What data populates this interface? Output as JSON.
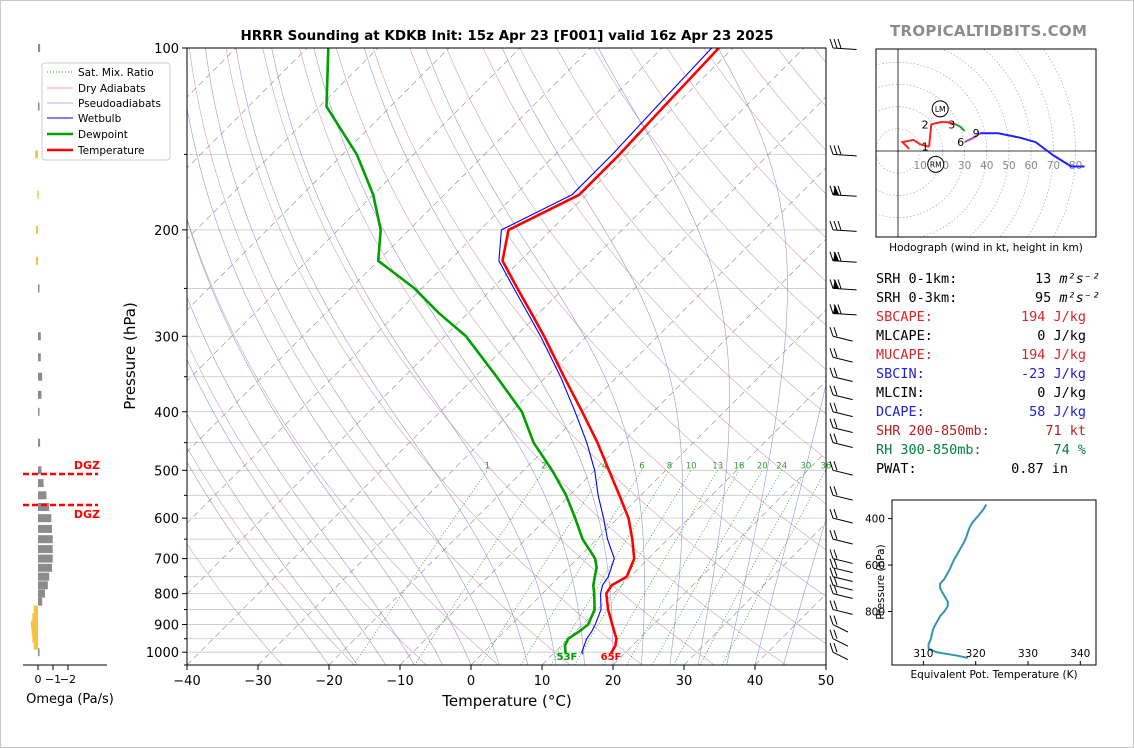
{
  "title": "HRRR Sounding at KDKB Init: 15z Apr 23 [F001] valid 16z Apr 23 2025",
  "brand": "TROPICALTIDBITS.COM",
  "skewt": {
    "xlabel": "Temperature (°C)",
    "ylabel": "Pressure (hPa)",
    "x_ticks": [
      "−40",
      "−30",
      "−20",
      "−10",
      "0",
      "10",
      "20",
      "30",
      "40",
      "50"
    ],
    "y_ticks": [
      "100",
      "200",
      "300",
      "400",
      "500",
      "600",
      "700",
      "800",
      "900",
      "1000"
    ],
    "legend": [
      "Sat. Mix. Ratio",
      "Dry Adiabats",
      "Pseudoadiabats",
      "Wetbulb",
      "Dewpoint",
      "Temperature"
    ],
    "mixing_ratio_labels": [
      "1",
      "2",
      "4",
      "6",
      "8",
      "10",
      "13",
      "16",
      "20",
      "24",
      "30",
      "36"
    ],
    "surface_dewpoint_label": "53F",
    "surface_temp_label": "65F",
    "colors": {
      "temperature": "#ff0000",
      "dewpoint": "#00a000",
      "wetbulb": "#0000ff",
      "mixing": "#2e9e2e",
      "dry": "#c8879a",
      "moist": "#7d7dd2"
    }
  },
  "omega": {
    "xlabel": "Omega (Pa/s)",
    "ticks": [
      "0",
      "−1",
      "−2"
    ],
    "dgz_label": "DGZ"
  },
  "hodograph": {
    "caption": "Hodograph (wind in kt, height in km)",
    "ring_labels": [
      "10",
      "20",
      "30",
      "40",
      "50",
      "60",
      "70",
      "80"
    ],
    "height_labels": [
      "1",
      "2",
      "3",
      "6",
      "9"
    ],
    "lm_label": "LM",
    "rm_label": "RM"
  },
  "params": [
    {
      "label": "SRH 0-1km:",
      "value": "13",
      "unit": "m²s⁻²",
      "color": "#000000"
    },
    {
      "label": "SRH 0-3km:",
      "value": "95",
      "unit": "m²s⁻²",
      "color": "#000000"
    },
    {
      "label": "SBCAPE:",
      "value": "194 J/kg",
      "color": "#d62728"
    },
    {
      "label": "MLCAPE:",
      "value": "0 J/kg",
      "color": "#000000"
    },
    {
      "label": "MUCAPE:",
      "value": "194 J/kg",
      "color": "#d62728"
    },
    {
      "label": "SBCIN:",
      "value": "-23 J/kg",
      "color": "#2020d0"
    },
    {
      "label": "MLCIN:",
      "value": "0 J/kg",
      "color": "#000000"
    },
    {
      "label": "DCAPE:",
      "value": "58 J/kg",
      "color": "#2020d0"
    },
    {
      "label": "SHR 200-850mb:",
      "value": "71 kt",
      "color": "#b22222"
    },
    {
      "label": "RH 300-850mb:",
      "value": "74 %",
      "color": "#008040"
    },
    {
      "label": "PWAT:",
      "value": "0.87 in",
      "color": "#000000"
    }
  ],
  "theta_e": {
    "xlabel": "Equivalent Pot. Temperature (K)",
    "ylabel": "Pressure (hPa)",
    "x_ticks": [
      "310",
      "320",
      "330",
      "340"
    ],
    "y_ticks": [
      "400",
      "600",
      "800"
    ]
  },
  "chart_data": [
    {
      "type": "line",
      "name": "skew-t",
      "xlim": [
        -40,
        50
      ],
      "ylim": [
        1050,
        100
      ],
      "log_y": true,
      "skew_deg": 45,
      "series": [
        {
          "name": "Temperature",
          "p": [
            1007,
            1000,
            975,
            950,
            925,
            900,
            850,
            800,
            775,
            750,
            700,
            650,
            600,
            550,
            500,
            450,
            400,
            350,
            300,
            275,
            250,
            225,
            200,
            175,
            150,
            125,
            100
          ],
          "t": [
            18.3,
            18.0,
            17.6,
            16.8,
            15.5,
            14.2,
            11.5,
            9.0,
            8.6,
            9.5,
            8.0,
            5.0,
            1.5,
            -3.0,
            -8.0,
            -13.5,
            -20.0,
            -27.5,
            -36.0,
            -41.0,
            -46.5,
            -52.5,
            -56.0,
            -51.0,
            -51.0,
            -51.5,
            -52.0
          ]
        },
        {
          "name": "Dewpoint",
          "p": [
            1007,
            1000,
            975,
            950,
            925,
            900,
            850,
            800,
            775,
            750,
            725,
            700,
            650,
            600,
            550,
            500,
            450,
            400,
            350,
            300,
            275,
            250,
            225,
            200,
            175,
            150,
            125,
            100
          ],
          "t": [
            11.8,
            11.5,
            10.5,
            10.0,
            10.5,
            10.8,
            9.6,
            7.3,
            6.0,
            5.0,
            4.0,
            2.5,
            -2.0,
            -6.0,
            -10.5,
            -16.0,
            -22.5,
            -28.5,
            -37.0,
            -47.0,
            -54.0,
            -61.0,
            -70.0,
            -74.0,
            -80.0,
            -88.0,
            -99.0,
            -107.0
          ]
        },
        {
          "name": "Wetbulb",
          "p": [
            1007,
            1000,
            975,
            950,
            925,
            900,
            850,
            800,
            775,
            750,
            700,
            650,
            600,
            550,
            500,
            450,
            400,
            350,
            300,
            275,
            250,
            225,
            200,
            175,
            150,
            125,
            100
          ],
          "t": [
            14.2,
            13.8,
            13.2,
            12.6,
            12.3,
            11.8,
            10.5,
            8.2,
            7.3,
            6.9,
            5.2,
            1.5,
            -2.0,
            -6.0,
            -10.0,
            -15.0,
            -21.0,
            -28.0,
            -36.5,
            -41.5,
            -47.0,
            -53.0,
            -57.0,
            -52.0,
            -52.0,
            -52.5,
            -53.0
          ]
        }
      ]
    },
    {
      "type": "bar",
      "name": "omega",
      "xlim": [
        0.5,
        -2.5
      ],
      "p": [
        1000,
        975,
        950,
        925,
        900,
        875,
        850,
        825,
        800,
        775,
        750,
        725,
        700,
        675,
        650,
        625,
        600,
        575,
        550,
        525,
        500,
        450,
        400,
        375,
        350,
        325,
        300,
        250,
        225,
        200,
        175,
        150,
        125,
        100
      ],
      "omega": [
        -0.1,
        0.3,
        0.4,
        0.45,
        0.5,
        0.4,
        0.3,
        -0.3,
        -0.5,
        -0.7,
        -0.8,
        -1.0,
        -1.05,
        -1.05,
        -1.05,
        -1.0,
        -0.95,
        -0.8,
        -0.6,
        -0.4,
        -0.25,
        -0.15,
        -0.1,
        -0.25,
        -0.3,
        -0.2,
        -0.2,
        -0.05,
        0.15,
        0.15,
        0.05,
        0.2,
        -0.1,
        -0.15
      ],
      "dgz_p": [
        570,
        505
      ]
    },
    {
      "type": "line",
      "name": "hodograph",
      "xlim": [
        -10,
        90
      ],
      "ylim": [
        -40,
        45
      ],
      "rings_kt": [
        10,
        20,
        30,
        40,
        50,
        60,
        70,
        80
      ],
      "series": [
        {
          "name": "0-1 km",
          "color": "#ff2020",
          "u": [
            5,
            4,
            2,
            7,
            10,
            14
          ],
          "v": [
            1,
            2,
            4,
            5,
            3,
            2
          ]
        },
        {
          "name": "1-3 km",
          "color": "#ff2020",
          "u": [
            14,
            15,
            19,
            22,
            26
          ],
          "v": [
            2,
            12,
            13,
            13,
            12
          ]
        },
        {
          "name": "3-6 km",
          "color": "#20a020",
          "u": [
            26,
            28,
            30
          ],
          "v": [
            12,
            11,
            9
          ]
        },
        {
          "name": "6-9 km",
          "color": "#c040c0",
          "u": [
            30,
            34,
            37
          ],
          "v": [
            4,
            6,
            8
          ]
        },
        {
          "name": "9+ km",
          "color": "#2020ff",
          "u": [
            37,
            45,
            55,
            62,
            70,
            78,
            84
          ],
          "v": [
            8,
            8,
            6,
            4,
            -2,
            -7,
            -7
          ]
        }
      ],
      "lm": [
        19,
        19
      ],
      "rm": [
        17,
        -6
      ]
    },
    {
      "type": "line",
      "name": "theta-e",
      "xlim": [
        304,
        343
      ],
      "ylim": [
        1030,
        320
      ],
      "p": [
        1000,
        990,
        975,
        960,
        940,
        920,
        900,
        880,
        860,
        840,
        820,
        800,
        780,
        760,
        740,
        720,
        700,
        680,
        660,
        640,
        620,
        600,
        580,
        560,
        540,
        520,
        500,
        480,
        460,
        440,
        420,
        400,
        380,
        360,
        340
      ],
      "theta_e": [
        318.5,
        316.5,
        312.5,
        311.0,
        311.0,
        311.4,
        311.6,
        311.8,
        312.2,
        312.7,
        313.2,
        314.0,
        314.6,
        314.7,
        314.2,
        313.7,
        313.2,
        313.2,
        314.0,
        314.5,
        315.0,
        315.4,
        315.8,
        316.3,
        316.8,
        317.3,
        317.8,
        318.2,
        318.5,
        318.8,
        319.3,
        320.0,
        320.8,
        321.5,
        322.0
      ]
    }
  ]
}
